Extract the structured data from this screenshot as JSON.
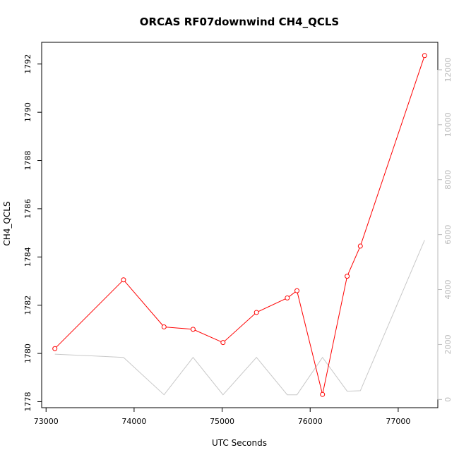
{
  "chart_data": {
    "type": "line",
    "title": "ORCAS RF07downwind CH4_QCLS",
    "xlabel": "UTC Seconds",
    "ylabel": "CH4_QCLS",
    "y2label": "",
    "xlim": [
      72950,
      77450
    ],
    "ylim": [
      1777.75,
      1792.9
    ],
    "y2lim": [
      -300,
      13000
    ],
    "x_ticks": [
      73000,
      74000,
      75000,
      76000,
      77000
    ],
    "y_ticks": [
      1778,
      1780,
      1782,
      1784,
      1786,
      1788,
      1790,
      1792
    ],
    "y2_ticks": [
      0,
      2000,
      4000,
      6000,
      8000,
      10000,
      12000
    ],
    "grid": false,
    "colors": {
      "primary": "#ff0000",
      "secondary": "#c8c8c8",
      "right_axis": "#b8b8b8"
    },
    "series": [
      {
        "axis": "left",
        "style": "line-with-open-circles",
        "x": [
          73100,
          73880,
          74340,
          74670,
          75010,
          75390,
          75740,
          75850,
          76140,
          76420,
          76570,
          77300
        ],
        "values": [
          1780.2,
          1783.05,
          1781.1,
          1781.0,
          1780.45,
          1781.7,
          1782.3,
          1782.6,
          1778.3,
          1783.2,
          1784.45,
          1792.35
        ]
      },
      {
        "axis": "right",
        "style": "line",
        "x": [
          73100,
          73880,
          74340,
          74670,
          75010,
          75390,
          75740,
          75850,
          76140,
          76420,
          76570,
          77300
        ],
        "values": [
          1650,
          1530,
          170,
          1530,
          170,
          1530,
          170,
          170,
          1530,
          300,
          320,
          5800
        ]
      }
    ]
  }
}
